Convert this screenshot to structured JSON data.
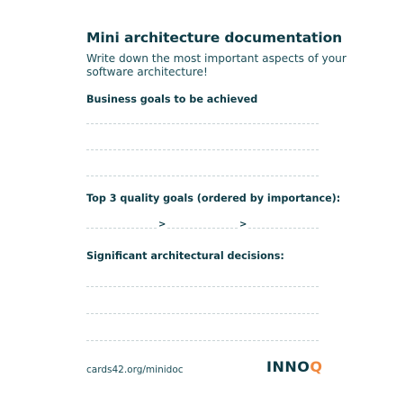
{
  "card": {
    "title": "Mini architecture documentation",
    "subtitle": "Write down the most important aspects of your software architecture!",
    "sections": {
      "business_goals": "Business goals to be achieved",
      "quality_goals": "Top 3 quality goals (ordered by importance):",
      "decisions": "Significant architectural decisions:"
    },
    "quality_separators": [
      ">",
      ">"
    ],
    "footer_url": "cards42.org/minidoc",
    "logo": {
      "main": "INNO",
      "accent": "Q"
    }
  },
  "colors": {
    "text": "#0d3b46",
    "dashed_line": "#c9d4d6",
    "logo_accent": "#f0883e"
  }
}
